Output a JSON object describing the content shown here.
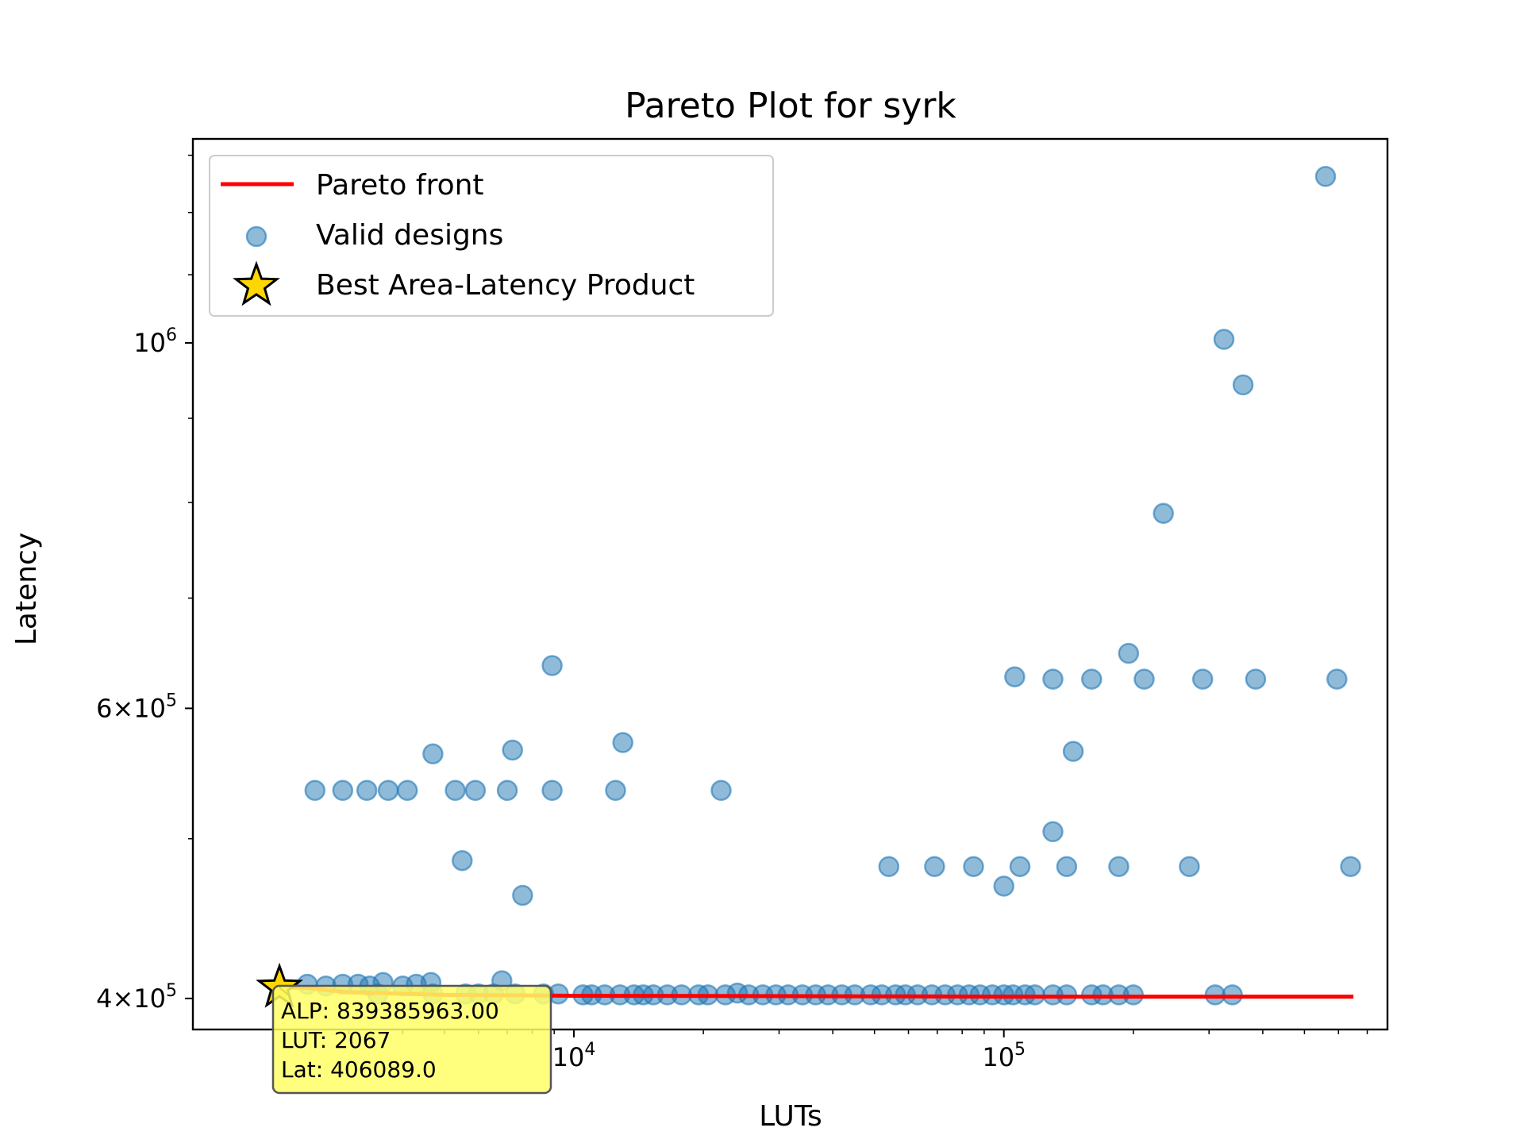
{
  "chart_data": {
    "type": "scatter",
    "title": "Pareto Plot for syrk",
    "xlabel": "LUTs",
    "ylabel": "Latency",
    "x_scale": "log",
    "y_scale": "log",
    "xlim": [
      1300,
      780000
    ],
    "ylim": [
      383000,
      1330000
    ],
    "x_ticks": [
      {
        "value": 10000,
        "label": "10^4"
      },
      {
        "value": 100000,
        "label": "10^5"
      }
    ],
    "y_ticks": [
      {
        "value": 400000,
        "label": "4×10^5"
      },
      {
        "value": 600000,
        "label": "6×10^5"
      },
      {
        "value": 1000000,
        "label": "10^6"
      }
    ],
    "grid": false,
    "legend": {
      "position": "top-left",
      "entries": [
        {
          "label": "Pareto front",
          "kind": "line",
          "color": "#ff0000"
        },
        {
          "label": "Valid designs",
          "kind": "marker",
          "color": "#1f77b4"
        },
        {
          "label": "Best Area-Latency Product",
          "kind": "star",
          "color": "#ffd700"
        }
      ]
    },
    "series": [
      {
        "name": "Pareto front",
        "kind": "line",
        "color": "#ff0000",
        "points": [
          [
            2067,
            406089
          ],
          [
            2400,
            406000
          ],
          [
            2700,
            404500
          ],
          [
            3000,
            403500
          ],
          [
            3500,
            403000
          ],
          [
            5000,
            402000
          ],
          [
            10000,
            401500
          ],
          [
            50000,
            401200
          ],
          [
            100000,
            401000
          ],
          [
            650000,
            401000
          ]
        ]
      },
      {
        "name": "Valid designs",
        "kind": "scatter",
        "color": "#1f77b4",
        "points": [
          [
            2500,
            535000
          ],
          [
            2900,
            535000
          ],
          [
            3300,
            535000
          ],
          [
            3700,
            535000
          ],
          [
            4100,
            535000
          ],
          [
            5300,
            535000
          ],
          [
            5900,
            535000
          ],
          [
            7000,
            535000
          ],
          [
            8900,
            535000
          ],
          [
            12500,
            535000
          ],
          [
            22000,
            535000
          ],
          [
            4700,
            563000
          ],
          [
            7200,
            566000
          ],
          [
            13000,
            572000
          ],
          [
            8900,
            637000
          ],
          [
            5500,
            485000
          ],
          [
            7600,
            462000
          ],
          [
            2400,
            408000
          ],
          [
            2650,
            407000
          ],
          [
            2900,
            408000
          ],
          [
            3150,
            408000
          ],
          [
            3350,
            407000
          ],
          [
            3600,
            409000
          ],
          [
            4000,
            407000
          ],
          [
            4300,
            408000
          ],
          [
            4650,
            409000
          ],
          [
            6800,
            410000
          ],
          [
            3500,
            402500
          ],
          [
            4700,
            402500
          ],
          [
            5600,
            402500
          ],
          [
            6000,
            402500
          ],
          [
            6500,
            402500
          ],
          [
            7300,
            402500
          ],
          [
            8500,
            402500
          ],
          [
            9200,
            402500
          ],
          [
            10500,
            402000
          ],
          [
            11000,
            402000
          ],
          [
            11800,
            402000
          ],
          [
            12800,
            402000
          ],
          [
            13800,
            402000
          ],
          [
            14500,
            402000
          ],
          [
            15300,
            402000
          ],
          [
            16500,
            402000
          ],
          [
            17800,
            402000
          ],
          [
            19500,
            402000
          ],
          [
            20500,
            402000
          ],
          [
            22500,
            402000
          ],
          [
            24000,
            403000
          ],
          [
            25500,
            402000
          ],
          [
            27500,
            402000
          ],
          [
            29500,
            402000
          ],
          [
            31500,
            402000
          ],
          [
            34000,
            402000
          ],
          [
            36500,
            402000
          ],
          [
            39000,
            402000
          ],
          [
            42000,
            402000
          ],
          [
            45000,
            402000
          ],
          [
            49000,
            402000
          ],
          [
            52000,
            402000
          ],
          [
            56000,
            402000
          ],
          [
            59000,
            402000
          ],
          [
            63000,
            402000
          ],
          [
            68000,
            402000
          ],
          [
            73000,
            402000
          ],
          [
            78000,
            402000
          ],
          [
            83000,
            402000
          ],
          [
            88000,
            402000
          ],
          [
            94000,
            402000
          ],
          [
            100000,
            402000
          ],
          [
            105000,
            402000
          ],
          [
            112000,
            402000
          ],
          [
            118000,
            402000
          ],
          [
            130000,
            402000
          ],
          [
            140000,
            402000
          ],
          [
            160000,
            402000
          ],
          [
            170000,
            402000
          ],
          [
            185000,
            402000
          ],
          [
            200000,
            402000
          ],
          [
            310000,
            402000
          ],
          [
            340000,
            402000
          ],
          [
            54000,
            481000
          ],
          [
            69000,
            481000
          ],
          [
            85000,
            481000
          ],
          [
            100000,
            468000
          ],
          [
            109000,
            481000
          ],
          [
            140000,
            481000
          ],
          [
            185000,
            481000
          ],
          [
            270000,
            481000
          ],
          [
            640000,
            481000
          ],
          [
            130000,
            505000
          ],
          [
            106000,
            627000
          ],
          [
            130000,
            625000
          ],
          [
            160000,
            625000
          ],
          [
            212000,
            625000
          ],
          [
            290000,
            625000
          ],
          [
            385000,
            625000
          ],
          [
            595000,
            625000
          ],
          [
            195000,
            648000
          ],
          [
            145000,
            565000
          ],
          [
            235000,
            788000
          ],
          [
            360000,
            943000
          ],
          [
            325000,
            1005000
          ],
          [
            560000,
            1262000
          ]
        ]
      },
      {
        "name": "Best Area-Latency Product",
        "kind": "star",
        "color": "#ffd700",
        "points": [
          [
            2067,
            406089
          ]
        ]
      }
    ],
    "annotation": {
      "lines": [
        "ALP: 839385963.00",
        "LUT: 2067",
        "Lat: 406089.0"
      ],
      "bg_color": "#ffff66"
    }
  }
}
